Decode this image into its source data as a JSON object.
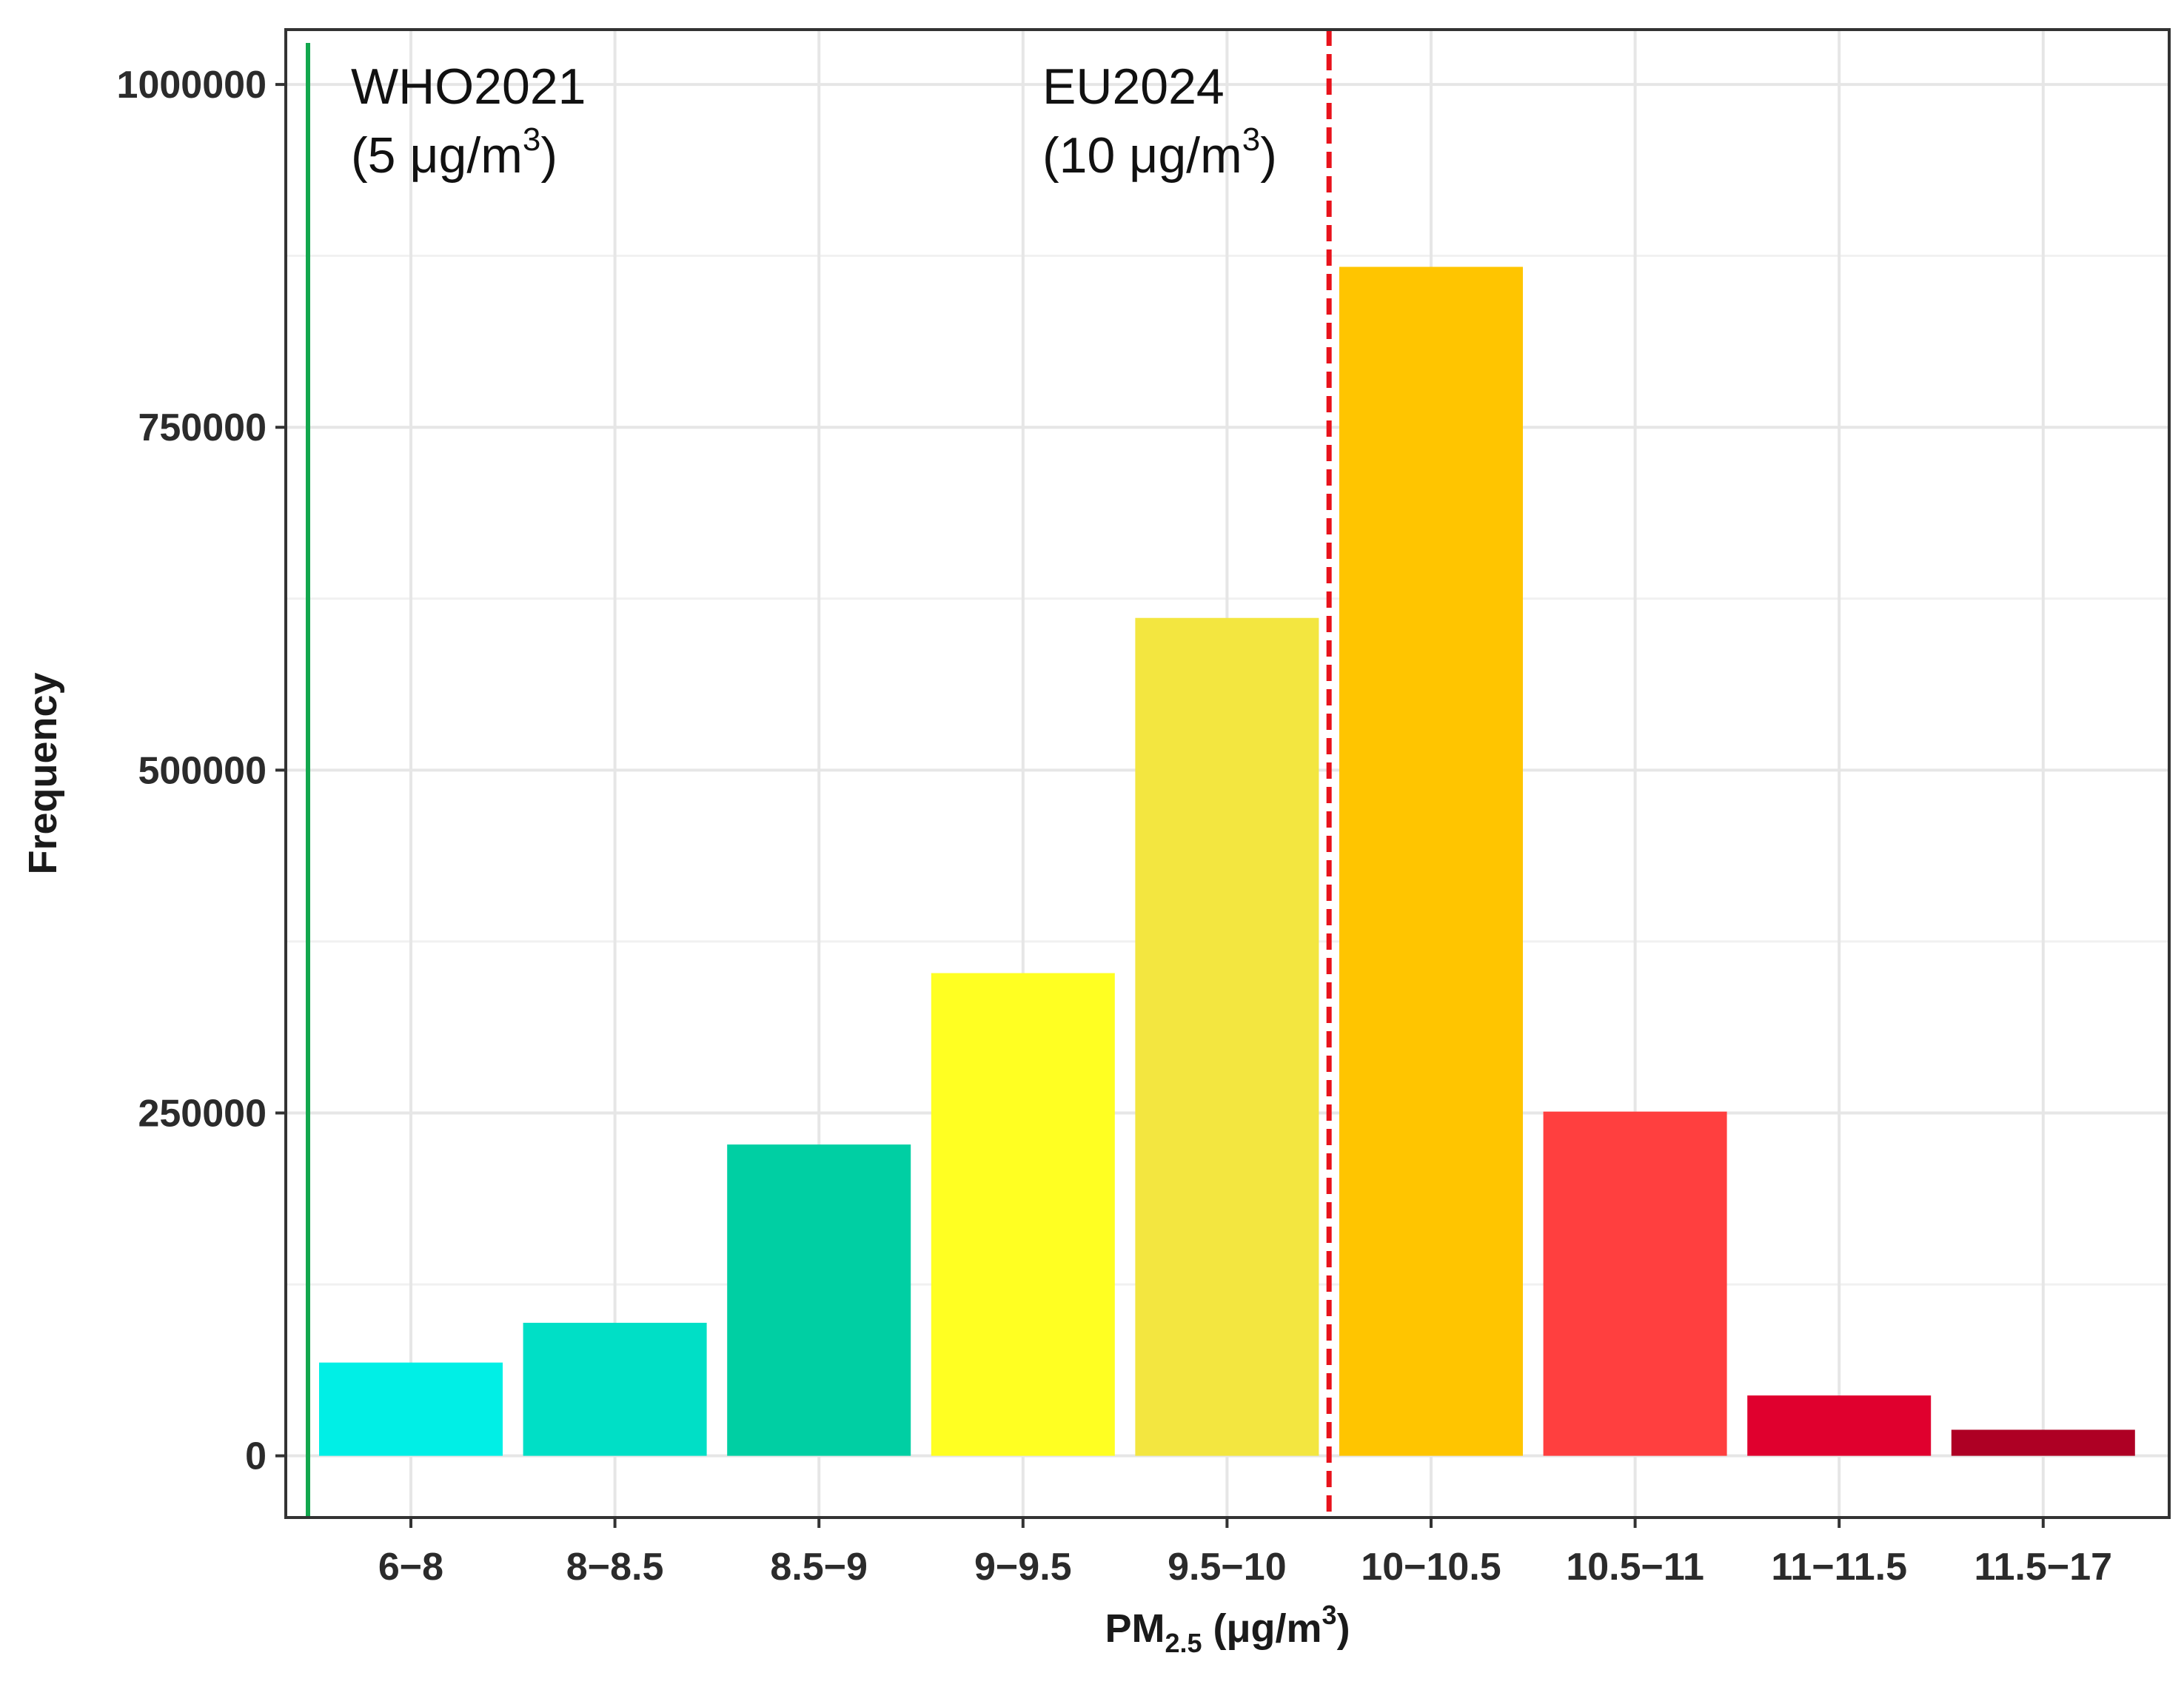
{
  "chart_data": {
    "type": "bar",
    "categories": [
      "6−8",
      "8−8.5",
      "8.5−9",
      "9−9.5",
      "9.5−10",
      "10−10.5",
      "10.5−11",
      "11−11.5",
      "11.5−17"
    ],
    "values": [
      68000,
      97000,
      227000,
      352000,
      611000,
      867000,
      251000,
      44000,
      19000
    ],
    "colors": [
      "#00EFE6",
      "#00DFC6",
      "#00CFA3",
      "#FFFF22",
      "#F3E640",
      "#FFC500",
      "#FF3F3F",
      "#E0002E",
      "#AE0024"
    ],
    "ylabel": "Frequency",
    "xlabel": {
      "main": "PM",
      "sub": "2.5",
      "unit_pre": " (μg/m",
      "sup": "3",
      "unit_post": ")"
    },
    "ylim": [
      -45000,
      1040000
    ],
    "yticks": [
      0,
      250000,
      500000,
      750000,
      1000000
    ],
    "ytick_labels": [
      "0",
      "250000",
      "500000",
      "750000",
      "1000000"
    ],
    "grid": true,
    "legend": "none",
    "reference_lines": [
      {
        "name": "who",
        "x_value": 5,
        "style": "solid",
        "color": "#12A74D",
        "label_line1": "WHO2021",
        "label_line2_pre": "(5 μg/m",
        "label_sup": "3",
        "label_line2_post": ")"
      },
      {
        "name": "eu",
        "x_value": 10,
        "style": "dashed",
        "color": "#E8121B",
        "label_line1": "EU2024",
        "label_line2_pre": "(10 μg/m",
        "label_sup": "3",
        "label_line2_post": ")"
      }
    ]
  }
}
